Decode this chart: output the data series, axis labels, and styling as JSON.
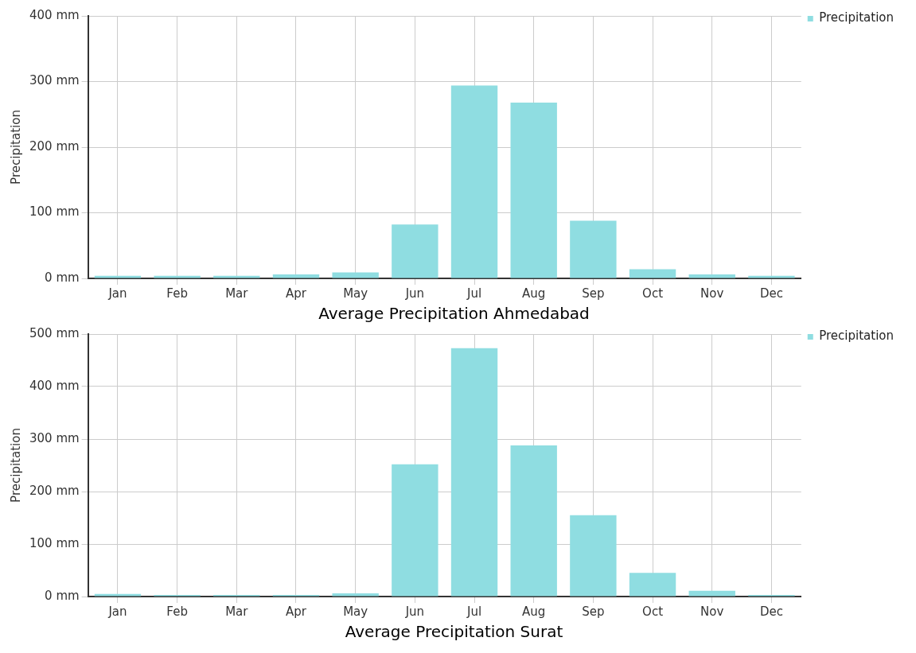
{
  "chart_data": [
    {
      "type": "bar",
      "title": "Average Precipitation Ahmedabad",
      "ylabel": "Precipitation",
      "categories": [
        "Jan",
        "Feb",
        "Mar",
        "Apr",
        "May",
        "Jun",
        "Jul",
        "Aug",
        "Sep",
        "Oct",
        "Nov",
        "Dec"
      ],
      "series": [
        {
          "name": "Precipitation",
          "color": "#8fdde1",
          "values": [
            4,
            4,
            4,
            6,
            9,
            82,
            294,
            268,
            88,
            14,
            6,
            4
          ]
        }
      ],
      "ylim": [
        0,
        400
      ],
      "yticks": [
        {
          "value": 0,
          "label": "0 mm"
        },
        {
          "value": 100,
          "label": "100 mm"
        },
        {
          "value": 200,
          "label": "200 mm"
        },
        {
          "value": 300,
          "label": "300 mm"
        },
        {
          "value": 400,
          "label": "400 mm"
        }
      ],
      "grid": true,
      "legend": "top right"
    },
    {
      "type": "bar",
      "title": "Average Precipitation Surat",
      "ylabel": "Precipitation",
      "categories": [
        "Jan",
        "Feb",
        "Mar",
        "Apr",
        "May",
        "Jun",
        "Jul",
        "Aug",
        "Sep",
        "Oct",
        "Nov",
        "Dec"
      ],
      "series": [
        {
          "name": "Precipitation",
          "color": "#8fdde1",
          "values": [
            5,
            3,
            3,
            3,
            6,
            252,
            473,
            288,
            155,
            45,
            11,
            3
          ]
        }
      ],
      "ylim": [
        0,
        500
      ],
      "yticks": [
        {
          "value": 0,
          "label": "0 mm"
        },
        {
          "value": 100,
          "label": "100 mm"
        },
        {
          "value": 200,
          "label": "200 mm"
        },
        {
          "value": 300,
          "label": "300 mm"
        },
        {
          "value": 400,
          "label": "400 mm"
        },
        {
          "value": 500,
          "label": "500 mm"
        }
      ],
      "grid": true,
      "legend": "top right"
    }
  ]
}
